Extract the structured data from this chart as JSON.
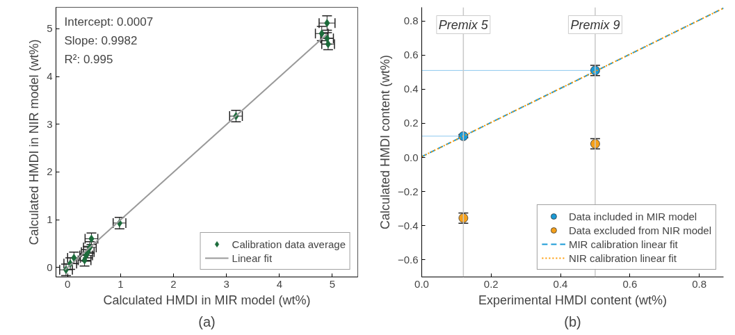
{
  "chart_data": [
    {
      "type": "scatter",
      "xlabel": "Calculated HMDI in MIR model (wt%)",
      "ylabel": "Calculated HMDI in NIR model (wt%)",
      "xlim": [
        -0.22,
        5.48
      ],
      "ylim": [
        -0.2,
        5.45
      ],
      "xticks": [
        0,
        1,
        2,
        3,
        4,
        5
      ],
      "yticks": [
        0,
        1,
        2,
        3,
        4,
        5
      ],
      "grid": false,
      "legend": "bottom right",
      "annotations": [
        "Intercept: 0.0007",
        "Slope: 0.9982",
        "R²: 0.995",
        "(a)"
      ],
      "series": [
        {
          "name": "Calibration data average",
          "marker": "diamond",
          "color": "#1b6b3a",
          "x": [
            -0.03,
            0.05,
            0.12,
            0.32,
            0.35,
            0.38,
            0.42,
            0.45,
            0.98,
            3.18,
            4.8,
            4.9,
            4.9,
            4.92
          ],
          "values": [
            -0.05,
            0.08,
            0.2,
            0.15,
            0.25,
            0.32,
            0.42,
            0.6,
            0.93,
            3.17,
            4.9,
            5.12,
            4.8,
            4.68
          ],
          "errors": [
            0.12,
            0.12,
            0.12,
            0.12,
            0.12,
            0.12,
            0.12,
            0.12,
            0.12,
            0.12,
            0.15,
            0.15,
            0.12,
            0.12
          ],
          "xerrors": [
            0.12,
            0.12,
            0.12,
            0.12,
            0.12,
            0.12,
            0.12,
            0.12,
            0.12,
            0.12,
            0.12,
            0.15,
            0.12,
            0.12
          ]
        },
        {
          "name": "Linear fit",
          "type": "line",
          "marker": "none",
          "line_style": "solid",
          "color": "#999999",
          "x": [
            -0.05,
            4.9
          ],
          "values": [
            -0.05,
            4.89
          ]
        }
      ]
    },
    {
      "type": "scatter",
      "xlabel": "Experimental HMDI content (wt%)",
      "ylabel": "Calculated HMDI content (wt%)",
      "xlim": [
        0,
        0.87
      ],
      "ylim": [
        -0.7,
        0.88
      ],
      "xticks": [
        {
          "value": 0,
          "label": "0.0"
        },
        {
          "value": 0.2,
          "label": "0.2"
        },
        {
          "value": 0.4,
          "label": "0.4"
        },
        {
          "value": 0.6,
          "label": "0.6"
        },
        {
          "value": 0.8,
          "label": "0.8"
        }
      ],
      "yticks": [
        {
          "value": -0.6,
          "label": "−0.6"
        },
        {
          "value": -0.4,
          "label": "−0.4"
        },
        {
          "value": -0.2,
          "label": "−0.2"
        },
        {
          "value": 0,
          "label": "0.0"
        },
        {
          "value": 0.2,
          "label": "0.2"
        },
        {
          "value": 0.4,
          "label": "0.4"
        },
        {
          "value": 0.6,
          "label": "0.6"
        },
        {
          "value": 0.8,
          "label": "0.8"
        }
      ],
      "grid": false,
      "legend": "bottom right",
      "annotations": [
        "(b)"
      ],
      "ref_lines": [
        {
          "axis": "x",
          "value": 0.12,
          "label": "Premix 5",
          "color": "#c8c8c8"
        },
        {
          "axis": "x",
          "value": 0.5,
          "label": "Premix 9",
          "color": "#c8c8c8"
        }
      ],
      "series": [
        {
          "type": "line",
          "marker": "none",
          "line_style": "solid",
          "color": "#8cc8ee",
          "x": [
            0,
            0.12
          ],
          "values": [
            0.125,
            0.125
          ]
        },
        {
          "type": "line",
          "marker": "none",
          "line_style": "solid",
          "color": "#8cc8ee",
          "x": [
            0,
            0.5
          ],
          "values": [
            0.51,
            0.51
          ]
        },
        {
          "name": "Data included in MIR model",
          "marker": "circle",
          "color": "#1a9ad6",
          "x": [
            0.12,
            0.5
          ],
          "values": [
            0.125,
            0.51
          ],
          "errors": [
            0.01,
            0.03
          ]
        },
        {
          "name": "Data excluded from NIR model",
          "marker": "circle",
          "color": "#f5a01a",
          "x": [
            0.12,
            0.5
          ],
          "values": [
            -0.355,
            0.08
          ],
          "errors": [
            0.03,
            0.03
          ]
        },
        {
          "name": "MIR calibration linear fit",
          "type": "line",
          "marker": "none",
          "line_style": "dashed",
          "color": "#1a9ad6",
          "x": [
            0,
            0.87
          ],
          "values": [
            0.005,
            0.875
          ]
        },
        {
          "name": "NIR calibration linear fit",
          "type": "line",
          "marker": "none",
          "line_style": "dotted",
          "color": "#ff9900",
          "x": [
            0,
            0.87
          ],
          "values": [
            0.005,
            0.875
          ]
        }
      ]
    }
  ]
}
